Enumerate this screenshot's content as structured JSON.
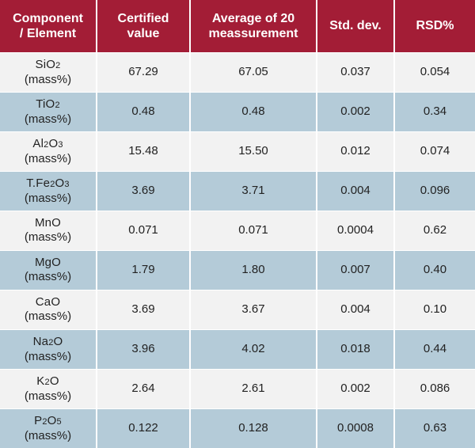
{
  "headers": [
    {
      "lines": [
        "Component",
        "/ Element"
      ]
    },
    {
      "lines": [
        "Certified",
        "value"
      ]
    },
    {
      "lines": [
        "Average of 20",
        "meassurement"
      ]
    },
    {
      "lines": [
        "Std. dev."
      ]
    },
    {
      "lines": [
        "RSD%"
      ]
    }
  ],
  "unit_label": "(mass%)",
  "rows": [
    {
      "component": [
        {
          "t": "SiO"
        },
        {
          "t": "2",
          "s": 1
        }
      ],
      "certified": "67.29",
      "average": "67.05",
      "std_dev": "0.037",
      "rsd": "0.054"
    },
    {
      "component": [
        {
          "t": "TiO"
        },
        {
          "t": "2",
          "s": 1
        }
      ],
      "certified": "0.48",
      "average": "0.48",
      "std_dev": "0.002",
      "rsd": "0.34"
    },
    {
      "component": [
        {
          "t": "Al"
        },
        {
          "t": "2",
          "s": 1
        },
        {
          "t": "O"
        },
        {
          "t": "3",
          "s": 1
        }
      ],
      "certified": "15.48",
      "average": "15.50",
      "std_dev": "0.012",
      "rsd": "0.074"
    },
    {
      "component": [
        {
          "t": "T.Fe"
        },
        {
          "t": "2",
          "s": 1
        },
        {
          "t": "O"
        },
        {
          "t": "3",
          "s": 1
        }
      ],
      "certified": "3.69",
      "average": "3.71",
      "std_dev": "0.004",
      "rsd": "0.096"
    },
    {
      "component": [
        {
          "t": "MnO"
        }
      ],
      "certified": "0.071",
      "average": "0.071",
      "std_dev": "0.0004",
      "rsd": "0.62"
    },
    {
      "component": [
        {
          "t": "MgO"
        }
      ],
      "certified": "1.79",
      "average": "1.80",
      "std_dev": "0.007",
      "rsd": "0.40"
    },
    {
      "component": [
        {
          "t": "CaO"
        }
      ],
      "certified": "3.69",
      "average": "3.67",
      "std_dev": "0.004",
      "rsd": "0.10"
    },
    {
      "component": [
        {
          "t": "Na"
        },
        {
          "t": "2",
          "s": 1
        },
        {
          "t": "O"
        }
      ],
      "certified": "3.96",
      "average": "4.02",
      "std_dev": "0.018",
      "rsd": "0.44"
    },
    {
      "component": [
        {
          "t": "K"
        },
        {
          "t": "2",
          "s": 1
        },
        {
          "t": "O"
        }
      ],
      "certified": "2.64",
      "average": "2.61",
      "std_dev": "0.002",
      "rsd": "0.086"
    },
    {
      "component": [
        {
          "t": "P"
        },
        {
          "t": "2",
          "s": 1
        },
        {
          "t": "O"
        },
        {
          "t": "5",
          "s": 1
        }
      ],
      "certified": "0.122",
      "average": "0.128",
      "std_dev": "0.0008",
      "rsd": "0.63"
    }
  ],
  "colors": {
    "header_bg": "#a31d36",
    "row_light": "#f2f2f2",
    "row_blue": "#b4cbd8"
  }
}
